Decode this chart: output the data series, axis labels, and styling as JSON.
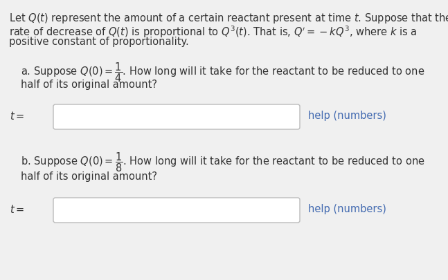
{
  "bg_color": "#e9e9e9",
  "panel_color": "#f0f0f0",
  "text_color": "#333333",
  "link_color": "#4169b0",
  "input_box_color": "#ffffff",
  "input_box_border": "#bbbbbb",
  "font_size": 10.5,
  "font_size_help": 10.5,
  "para_line1": "Let $Q(t)$ represent the amount of a certain reactant present at time $t$. Suppose that the",
  "para_line2": "rate of decrease of $Q(t)$ is proportional to $Q^3(t)$. That is, $Q' = -kQ^3$, where $k$ is a",
  "para_line3": "positive constant of proportionality.",
  "part_a_line1": "a. Suppose $Q(0) = \\dfrac{1}{4}$. How long will it take for the reactant to be reduced to one",
  "part_a_line2": "half of its original amount?",
  "part_b_line1": "b. Suppose $Q(0) = \\dfrac{1}{8}$. How long will it take for the reactant to be reduced to one",
  "part_b_line2": "half of its original amount?",
  "t_label": "$t =$",
  "help_text": "help (numbers)"
}
